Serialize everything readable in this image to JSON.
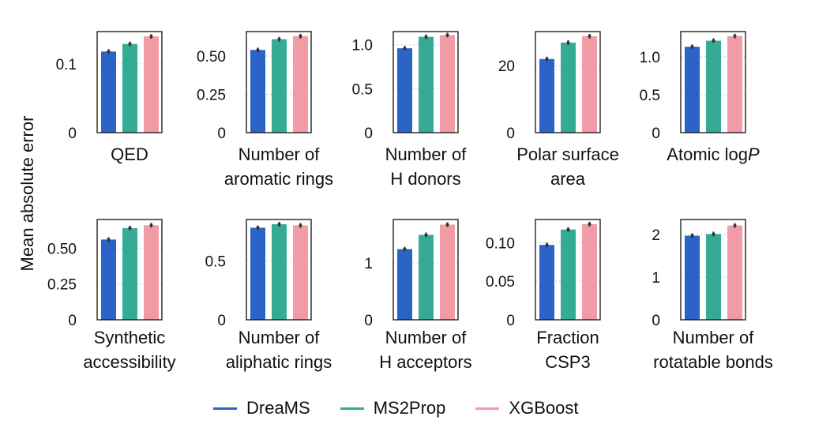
{
  "figure": {
    "ylabel": "Mean absolute error"
  },
  "legend": {
    "items": [
      {
        "label": "DreaMS",
        "color": "#2b63c7"
      },
      {
        "label": "MS2Prop",
        "color": "#35aa95"
      },
      {
        "label": "XGBoost",
        "color": "#f19ba5"
      }
    ]
  },
  "chart_data": [
    {
      "type": "bar",
      "title": [
        "QED"
      ],
      "categories": [
        "DreaMS",
        "MS2Prop",
        "XGBoost"
      ],
      "values": [
        0.118,
        0.129,
        0.14
      ],
      "ylim": [
        0,
        0.147
      ],
      "yticks": [
        0,
        0.1
      ],
      "ytick_labels": [
        "0",
        "0.1"
      ]
    },
    {
      "type": "bar",
      "title": [
        "Number of",
        "aromatic rings"
      ],
      "categories": [
        "DreaMS",
        "MS2Prop",
        "XGBoost"
      ],
      "values": [
        0.54,
        0.61,
        0.63
      ],
      "ylim": [
        0,
        0.66
      ],
      "yticks": [
        0,
        0.25,
        0.5
      ],
      "ytick_labels": [
        "0",
        "0.25",
        "0.50"
      ]
    },
    {
      "type": "bar",
      "title": [
        "Number of",
        "H donors"
      ],
      "categories": [
        "DreaMS",
        "MS2Prop",
        "XGBoost"
      ],
      "values": [
        0.96,
        1.09,
        1.11
      ],
      "ylim": [
        0,
        1.15
      ],
      "yticks": [
        0,
        0.5,
        1.0
      ],
      "ytick_labels": [
        "0",
        "0.5",
        "1.0"
      ]
    },
    {
      "type": "bar",
      "title": [
        "Polar surface",
        "area"
      ],
      "categories": [
        "DreaMS",
        "MS2Prop",
        "XGBoost"
      ],
      "values": [
        22.0,
        26.9,
        28.8
      ],
      "ylim": [
        0,
        30.2
      ],
      "yticks": [
        0,
        20
      ],
      "ytick_labels": [
        "0",
        "20"
      ]
    },
    {
      "type": "bar",
      "title": [
        "Atomic logP"
      ],
      "title_italic_suffix": "P",
      "categories": [
        "DreaMS",
        "MS2Prop",
        "XGBoost"
      ],
      "values": [
        1.13,
        1.21,
        1.27
      ],
      "ylim": [
        0,
        1.33
      ],
      "yticks": [
        0,
        0.5,
        1.0
      ],
      "ytick_labels": [
        "0",
        "0.5",
        "1.0"
      ]
    },
    {
      "type": "bar",
      "title": [
        "Synthetic",
        "accessibility"
      ],
      "categories": [
        "DreaMS",
        "MS2Prop",
        "XGBoost"
      ],
      "values": [
        0.56,
        0.64,
        0.66
      ],
      "ylim": [
        0,
        0.7
      ],
      "yticks": [
        0,
        0.25,
        0.5
      ],
      "ytick_labels": [
        "0",
        "0.25",
        "0.50"
      ]
    },
    {
      "type": "bar",
      "title": [
        "Number of",
        "aliphatic rings"
      ],
      "categories": [
        "DreaMS",
        "MS2Prop",
        "XGBoost"
      ],
      "values": [
        0.78,
        0.81,
        0.8
      ],
      "ylim": [
        0,
        0.85
      ],
      "yticks": [
        0,
        0.5
      ],
      "ytick_labels": [
        "0",
        "0.5"
      ]
    },
    {
      "type": "bar",
      "title": [
        "Number of",
        "H acceptors"
      ],
      "categories": [
        "DreaMS",
        "MS2Prop",
        "XGBoost"
      ],
      "values": [
        1.24,
        1.49,
        1.67
      ],
      "ylim": [
        0,
        1.76
      ],
      "yticks": [
        0,
        1
      ],
      "ytick_labels": [
        "0",
        "1"
      ]
    },
    {
      "type": "bar",
      "title": [
        "Fraction",
        "CSP3"
      ],
      "categories": [
        "DreaMS",
        "MS2Prop",
        "XGBoost"
      ],
      "values": [
        0.097,
        0.117,
        0.124
      ],
      "ylim": [
        0,
        0.13
      ],
      "yticks": [
        0,
        0.05,
        0.1
      ],
      "ytick_labels": [
        "0",
        "0.05",
        "0.10"
      ]
    },
    {
      "type": "bar",
      "title": [
        "Number of",
        "rotatable bonds"
      ],
      "categories": [
        "DreaMS",
        "MS2Prop",
        "XGBoost"
      ],
      "values": [
        1.97,
        2.01,
        2.21
      ],
      "ylim": [
        0,
        2.35
      ],
      "yticks": [
        0,
        1,
        2
      ],
      "ytick_labels": [
        "0",
        "1",
        "2"
      ]
    }
  ]
}
